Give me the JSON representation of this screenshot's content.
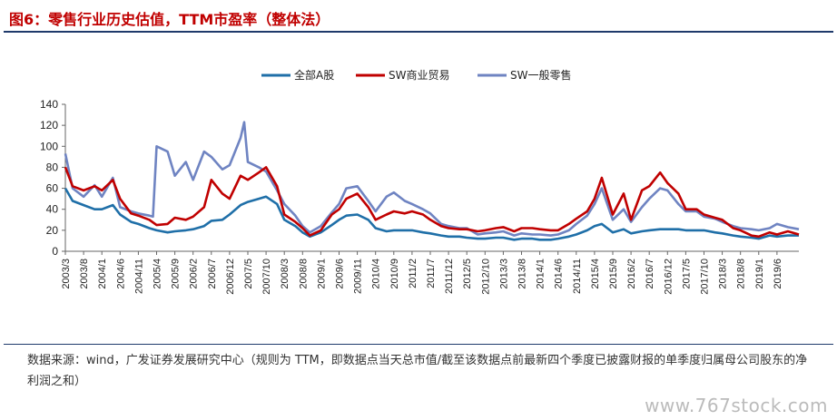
{
  "header": {
    "title": "图6：零售行业历史估值，TTM市盈率（整体法）"
  },
  "footer": {
    "source": "数据来源：wind，广发证券发展研究中心（规则为 TTM，即数据点当天总市值/截至该数据点前最新四个季度已披露财报的单季度归属母公司股东的净利润之和）",
    "watermark": "www.767stock.com"
  },
  "chart_data": {
    "type": "line",
    "legend_position": "top-center",
    "grid": false,
    "ylim": [
      0,
      140
    ],
    "yticks": [
      0,
      20,
      40,
      60,
      80,
      100,
      120,
      140
    ],
    "x_start": "2003/3",
    "x_end": "2019/12",
    "xticks": [
      "2003/3",
      "2003/8",
      "2004/1",
      "2004/6",
      "2004/11",
      "2005/4",
      "2005/9",
      "2006/2",
      "2006/7",
      "2006/12",
      "2007/5",
      "2007/10",
      "2008/3",
      "2008/8",
      "2009/1",
      "2009/6",
      "2009/11",
      "2010/4",
      "2010/9",
      "2011/2",
      "2011/7",
      "2011/12",
      "2012/5",
      "2012/10",
      "2013/3",
      "2013/8",
      "2014/1",
      "2014/6",
      "2014/11",
      "2015/4",
      "2015/9",
      "2016/2",
      "2016/7",
      "2016/12",
      "2017/5",
      "2017/10",
      "2018/3",
      "2018/8",
      "2019/1",
      "2019/6"
    ],
    "series": [
      {
        "name": "全部A股",
        "color": "#1f6fa8",
        "points": [
          [
            "2003/3",
            60
          ],
          [
            "2003/5",
            48
          ],
          [
            "2003/8",
            44
          ],
          [
            "2003/11",
            40
          ],
          [
            "2004/1",
            40
          ],
          [
            "2004/4",
            44
          ],
          [
            "2004/6",
            35
          ],
          [
            "2004/9",
            28
          ],
          [
            "2004/11",
            26
          ],
          [
            "2005/2",
            22
          ],
          [
            "2005/4",
            20
          ],
          [
            "2005/7",
            18
          ],
          [
            "2005/9",
            19
          ],
          [
            "2005/12",
            20
          ],
          [
            "2006/2",
            21
          ],
          [
            "2006/5",
            24
          ],
          [
            "2006/7",
            29
          ],
          [
            "2006/10",
            30
          ],
          [
            "2006/12",
            35
          ],
          [
            "2007/3",
            44
          ],
          [
            "2007/5",
            47
          ],
          [
            "2007/8",
            50
          ],
          [
            "2007/10",
            52
          ],
          [
            "2008/1",
            45
          ],
          [
            "2008/3",
            30
          ],
          [
            "2008/6",
            24
          ],
          [
            "2008/8",
            18
          ],
          [
            "2008/10",
            14
          ],
          [
            "2009/1",
            18
          ],
          [
            "2009/4",
            25
          ],
          [
            "2009/6",
            30
          ],
          [
            "2009/8",
            34
          ],
          [
            "2009/11",
            35
          ],
          [
            "2010/2",
            30
          ],
          [
            "2010/4",
            22
          ],
          [
            "2010/7",
            19
          ],
          [
            "2010/9",
            20
          ],
          [
            "2010/12",
            20
          ],
          [
            "2011/2",
            20
          ],
          [
            "2011/5",
            18
          ],
          [
            "2011/7",
            17
          ],
          [
            "2011/10",
            15
          ],
          [
            "2011/12",
            14
          ],
          [
            "2012/3",
            14
          ],
          [
            "2012/5",
            13
          ],
          [
            "2012/8",
            12
          ],
          [
            "2012/10",
            12
          ],
          [
            "2013/1",
            13
          ],
          [
            "2013/3",
            13
          ],
          [
            "2013/6",
            11
          ],
          [
            "2013/8",
            12
          ],
          [
            "2013/11",
            12
          ],
          [
            "2014/1",
            11
          ],
          [
            "2014/4",
            11
          ],
          [
            "2014/6",
            12
          ],
          [
            "2014/9",
            14
          ],
          [
            "2014/11",
            16
          ],
          [
            "2015/2",
            20
          ],
          [
            "2015/4",
            24
          ],
          [
            "2015/6",
            26
          ],
          [
            "2015/9",
            18
          ],
          [
            "2015/12",
            21
          ],
          [
            "2016/2",
            17
          ],
          [
            "2016/5",
            19
          ],
          [
            "2016/7",
            20
          ],
          [
            "2016/10",
            21
          ],
          [
            "2016/12",
            21
          ],
          [
            "2017/3",
            21
          ],
          [
            "2017/5",
            20
          ],
          [
            "2017/8",
            20
          ],
          [
            "2017/10",
            20
          ],
          [
            "2018/1",
            18
          ],
          [
            "2018/3",
            17
          ],
          [
            "2018/6",
            15
          ],
          [
            "2018/8",
            14
          ],
          [
            "2018/11",
            13
          ],
          [
            "2019/1",
            12
          ],
          [
            "2019/4",
            15
          ],
          [
            "2019/6",
            14
          ],
          [
            "2019/9",
            15
          ],
          [
            "2019/12",
            15
          ]
        ]
      },
      {
        "name": "SW商业贸易",
        "color": "#c00000",
        "points": [
          [
            "2003/3",
            80
          ],
          [
            "2003/5",
            62
          ],
          [
            "2003/8",
            58
          ],
          [
            "2003/11",
            62
          ],
          [
            "2004/1",
            58
          ],
          [
            "2004/4",
            68
          ],
          [
            "2004/6",
            50
          ],
          [
            "2004/9",
            36
          ],
          [
            "2004/11",
            34
          ],
          [
            "2005/2",
            30
          ],
          [
            "2005/4",
            25
          ],
          [
            "2005/7",
            26
          ],
          [
            "2005/9",
            32
          ],
          [
            "2005/12",
            30
          ],
          [
            "2006/2",
            33
          ],
          [
            "2006/5",
            42
          ],
          [
            "2006/7",
            68
          ],
          [
            "2006/10",
            55
          ],
          [
            "2006/12",
            50
          ],
          [
            "2007/3",
            72
          ],
          [
            "2007/5",
            68
          ],
          [
            "2007/8",
            75
          ],
          [
            "2007/10",
            80
          ],
          [
            "2008/1",
            62
          ],
          [
            "2008/3",
            35
          ],
          [
            "2008/6",
            28
          ],
          [
            "2008/8",
            22
          ],
          [
            "2008/10",
            15
          ],
          [
            "2009/1",
            20
          ],
          [
            "2009/4",
            35
          ],
          [
            "2009/6",
            40
          ],
          [
            "2009/8",
            50
          ],
          [
            "2009/11",
            55
          ],
          [
            "2010/2",
            42
          ],
          [
            "2010/4",
            30
          ],
          [
            "2010/7",
            35
          ],
          [
            "2010/9",
            38
          ],
          [
            "2010/12",
            36
          ],
          [
            "2011/2",
            38
          ],
          [
            "2011/5",
            35
          ],
          [
            "2011/7",
            30
          ],
          [
            "2011/10",
            24
          ],
          [
            "2011/12",
            22
          ],
          [
            "2012/3",
            21
          ],
          [
            "2012/5",
            21
          ],
          [
            "2012/8",
            19
          ],
          [
            "2012/10",
            20
          ],
          [
            "2013/1",
            22
          ],
          [
            "2013/3",
            23
          ],
          [
            "2013/6",
            19
          ],
          [
            "2013/8",
            22
          ],
          [
            "2013/11",
            22
          ],
          [
            "2014/1",
            21
          ],
          [
            "2014/4",
            20
          ],
          [
            "2014/6",
            20
          ],
          [
            "2014/9",
            26
          ],
          [
            "2014/11",
            31
          ],
          [
            "2015/2",
            38
          ],
          [
            "2015/4",
            50
          ],
          [
            "2015/6",
            70
          ],
          [
            "2015/9",
            35
          ],
          [
            "2015/12",
            55
          ],
          [
            "2016/2",
            30
          ],
          [
            "2016/5",
            58
          ],
          [
            "2016/7",
            62
          ],
          [
            "2016/10",
            75
          ],
          [
            "2016/12",
            65
          ],
          [
            "2017/3",
            55
          ],
          [
            "2017/5",
            40
          ],
          [
            "2017/8",
            40
          ],
          [
            "2017/10",
            35
          ],
          [
            "2018/1",
            32
          ],
          [
            "2018/3",
            30
          ],
          [
            "2018/6",
            22
          ],
          [
            "2018/8",
            20
          ],
          [
            "2018/11",
            15
          ],
          [
            "2019/1",
            14
          ],
          [
            "2019/4",
            18
          ],
          [
            "2019/6",
            16
          ],
          [
            "2019/9",
            19
          ],
          [
            "2019/12",
            16
          ]
        ]
      },
      {
        "name": "SW一般零售",
        "color": "#6f84c2",
        "points": [
          [
            "2003/3",
            93
          ],
          [
            "2003/5",
            60
          ],
          [
            "2003/8",
            52
          ],
          [
            "2003/11",
            63
          ],
          [
            "2004/1",
            52
          ],
          [
            "2004/4",
            70
          ],
          [
            "2004/6",
            42
          ],
          [
            "2004/9",
            38
          ],
          [
            "2004/11",
            36
          ],
          [
            "2005/2",
            34
          ],
          [
            "2005/3",
            33
          ],
          [
            "2005/4",
            100
          ],
          [
            "2005/7",
            95
          ],
          [
            "2005/9",
            72
          ],
          [
            "2005/12",
            85
          ],
          [
            "2006/2",
            68
          ],
          [
            "2006/5",
            95
          ],
          [
            "2006/7",
            90
          ],
          [
            "2006/10",
            78
          ],
          [
            "2006/12",
            82
          ],
          [
            "2007/3",
            108
          ],
          [
            "2007/4",
            123
          ],
          [
            "2007/5",
            85
          ],
          [
            "2007/8",
            80
          ],
          [
            "2007/10",
            76
          ],
          [
            "2008/1",
            58
          ],
          [
            "2008/3",
            45
          ],
          [
            "2008/6",
            34
          ],
          [
            "2008/8",
            24
          ],
          [
            "2008/10",
            18
          ],
          [
            "2009/1",
            24
          ],
          [
            "2009/4",
            37
          ],
          [
            "2009/6",
            45
          ],
          [
            "2009/8",
            60
          ],
          [
            "2009/11",
            62
          ],
          [
            "2010/2",
            48
          ],
          [
            "2010/4",
            38
          ],
          [
            "2010/7",
            52
          ],
          [
            "2010/9",
            56
          ],
          [
            "2010/12",
            48
          ],
          [
            "2011/2",
            45
          ],
          [
            "2011/5",
            40
          ],
          [
            "2011/7",
            36
          ],
          [
            "2011/10",
            26
          ],
          [
            "2011/12",
            24
          ],
          [
            "2012/3",
            22
          ],
          [
            "2012/5",
            22
          ],
          [
            "2012/8",
            16
          ],
          [
            "2012/10",
            17
          ],
          [
            "2013/1",
            18
          ],
          [
            "2013/3",
            19
          ],
          [
            "2013/6",
            15
          ],
          [
            "2013/8",
            17
          ],
          [
            "2013/11",
            16
          ],
          [
            "2014/1",
            16
          ],
          [
            "2014/4",
            15
          ],
          [
            "2014/6",
            16
          ],
          [
            "2014/9",
            20
          ],
          [
            "2014/11",
            26
          ],
          [
            "2015/2",
            34
          ],
          [
            "2015/4",
            45
          ],
          [
            "2015/6",
            60
          ],
          [
            "2015/9",
            30
          ],
          [
            "2015/12",
            40
          ],
          [
            "2016/2",
            28
          ],
          [
            "2016/5",
            42
          ],
          [
            "2016/7",
            50
          ],
          [
            "2016/10",
            60
          ],
          [
            "2016/12",
            58
          ],
          [
            "2017/3",
            45
          ],
          [
            "2017/5",
            38
          ],
          [
            "2017/8",
            38
          ],
          [
            "2017/10",
            33
          ],
          [
            "2018/1",
            31
          ],
          [
            "2018/3",
            28
          ],
          [
            "2018/6",
            24
          ],
          [
            "2018/8",
            22
          ],
          [
            "2018/11",
            21
          ],
          [
            "2019/1",
            20
          ],
          [
            "2019/4",
            22
          ],
          [
            "2019/6",
            26
          ],
          [
            "2019/9",
            23
          ],
          [
            "2019/12",
            21
          ]
        ]
      }
    ]
  }
}
